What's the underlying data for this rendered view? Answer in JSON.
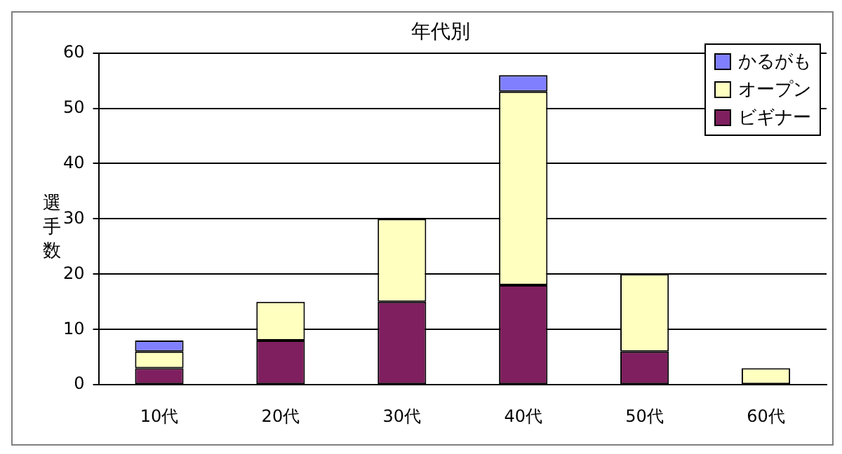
{
  "chart_data": {
    "type": "bar",
    "title": "年代別",
    "ylabel": "選手数",
    "categories": [
      "10代",
      "20代",
      "30代",
      "40代",
      "50代",
      "60代"
    ],
    "stacked": true,
    "ylim": [
      0,
      60
    ],
    "yticks": [
      0,
      10,
      20,
      30,
      40,
      50,
      60
    ],
    "grid": "y",
    "legend": "top right",
    "series": [
      {
        "name": "ビギナー",
        "color": "#7f1f5f",
        "values": [
          3,
          8,
          15,
          18,
          6,
          0
        ]
      },
      {
        "name": "オープン",
        "color": "#ffffc0",
        "values": [
          3,
          7,
          15,
          35,
          14,
          3
        ]
      },
      {
        "name": "かるがも",
        "color": "#8080ff",
        "values": [
          2,
          0,
          0,
          3,
          0,
          0
        ]
      }
    ]
  }
}
